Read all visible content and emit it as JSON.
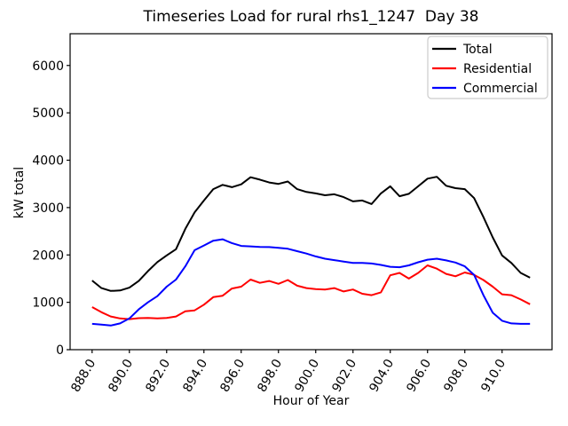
{
  "figure": {
    "title": "Timeseries Load for rural rhs1_1247  Day 38",
    "xlabel": "Hour of Year",
    "ylabel": "kW total"
  },
  "chart_data": {
    "type": "line",
    "title": "Timeseries Load for rural rhs1_1247  Day 38",
    "xlabel": "Hour of Year",
    "ylabel": "kW total",
    "grid": false,
    "xlim": [
      886.82,
      912.68
    ],
    "ylim": [
      0,
      6670
    ],
    "xticks": {
      "values": [
        888,
        890,
        892,
        894,
        896,
        898,
        900,
        902,
        904,
        906,
        908,
        910
      ],
      "labels": [
        "888.0",
        "890.0",
        "892.0",
        "894.0",
        "896.0",
        "898.0",
        "900.0",
        "902.0",
        "904.0",
        "906.0",
        "908.0",
        "910.0"
      ],
      "rotation_deg": 60
    },
    "yticks": {
      "values": [
        0,
        1000,
        2000,
        3000,
        4000,
        5000,
        6000
      ],
      "labels": [
        "0",
        "1000",
        "2000",
        "3000",
        "4000",
        "5000",
        "6000"
      ]
    },
    "x": [
      888.0,
      888.5,
      889.0,
      889.5,
      890.0,
      890.5,
      891.0,
      891.5,
      892.0,
      892.5,
      893.0,
      893.5,
      894.0,
      894.5,
      895.0,
      895.5,
      896.0,
      896.5,
      897.0,
      897.5,
      898.0,
      898.5,
      899.0,
      899.5,
      900.0,
      900.5,
      901.0,
      901.5,
      902.0,
      902.5,
      903.0,
      903.5,
      904.0,
      904.5,
      905.0,
      905.5,
      906.0,
      906.5,
      907.0,
      907.5,
      908.0,
      908.5,
      909.0,
      909.5,
      910.0,
      910.5,
      911.0,
      911.5
    ],
    "series": [
      {
        "name": "Total",
        "color": "#000000",
        "values": [
          1460,
          1300,
          1240,
          1250,
          1310,
          1450,
          1660,
          1850,
          1990,
          2120,
          2550,
          2900,
          3150,
          3390,
          3480,
          3430,
          3490,
          3640,
          3590,
          3530,
          3500,
          3550,
          3390,
          3330,
          3300,
          3260,
          3280,
          3220,
          3130,
          3150,
          3075,
          3300,
          3450,
          3240,
          3290,
          3450,
          3610,
          3650,
          3460,
          3410,
          3390,
          3200,
          2800,
          2370,
          1990,
          1830,
          1620,
          1520
        ]
      },
      {
        "name": "Residential",
        "color": "#ff0000",
        "values": [
          900,
          790,
          700,
          660,
          645,
          665,
          670,
          660,
          670,
          700,
          810,
          830,
          950,
          1110,
          1140,
          1290,
          1330,
          1480,
          1410,
          1450,
          1390,
          1470,
          1350,
          1300,
          1280,
          1270,
          1300,
          1230,
          1270,
          1180,
          1150,
          1210,
          1570,
          1620,
          1500,
          1620,
          1780,
          1710,
          1600,
          1550,
          1630,
          1580,
          1470,
          1330,
          1170,
          1150,
          1060,
          960
        ]
      },
      {
        "name": "Commercial",
        "color": "#0000ff",
        "values": [
          545,
          530,
          510,
          555,
          660,
          850,
          1000,
          1130,
          1330,
          1480,
          1760,
          2100,
          2200,
          2300,
          2330,
          2250,
          2190,
          2180,
          2170,
          2165,
          2150,
          2130,
          2080,
          2030,
          1970,
          1920,
          1890,
          1860,
          1830,
          1830,
          1820,
          1790,
          1750,
          1740,
          1780,
          1845,
          1900,
          1920,
          1885,
          1840,
          1760,
          1580,
          1150,
          780,
          610,
          555,
          545,
          545
        ]
      }
    ],
    "legend": {
      "position": "upper right",
      "entries": [
        "Total",
        "Residential",
        "Commercial"
      ],
      "border_color": "#cccccc",
      "background": "#ffffff"
    }
  }
}
